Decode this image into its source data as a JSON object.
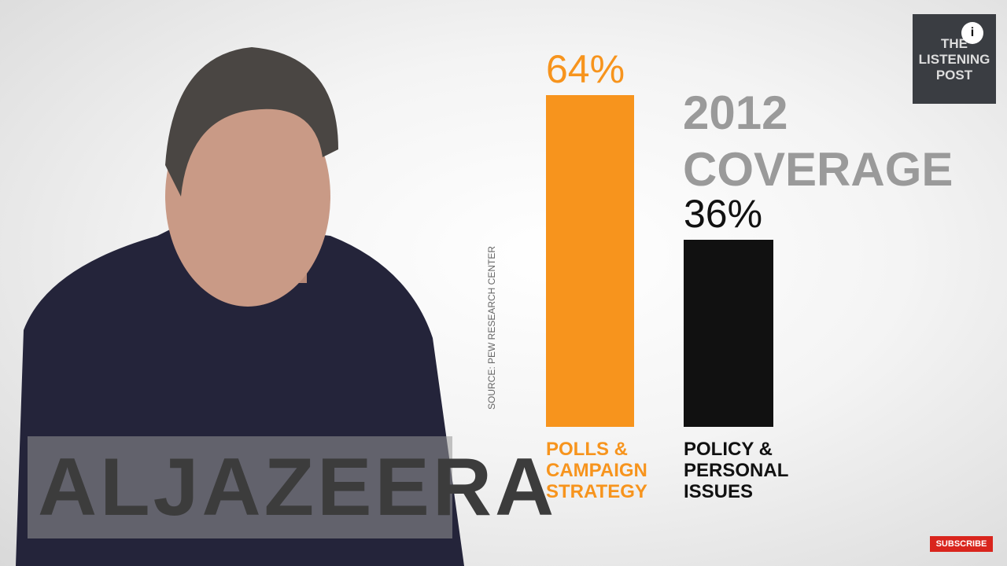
{
  "chart_data": {
    "type": "bar",
    "title": "2012 COVERAGE",
    "categories": [
      "POLLS & CAMPAIGN STRATEGY",
      "POLICY & PERSONAL ISSUES"
    ],
    "values": [
      64,
      36
    ],
    "value_labels": [
      "64%",
      "36%"
    ],
    "colors": [
      "#f7941d",
      "#111111"
    ],
    "source": "SOURCE: PEW RESEARCH CENTER"
  },
  "overlay": {
    "show_logo": "THE LISTENING POST",
    "channel_watermark": "ALJAZEERA",
    "subscribe_button": "SUBSCRIBE"
  }
}
